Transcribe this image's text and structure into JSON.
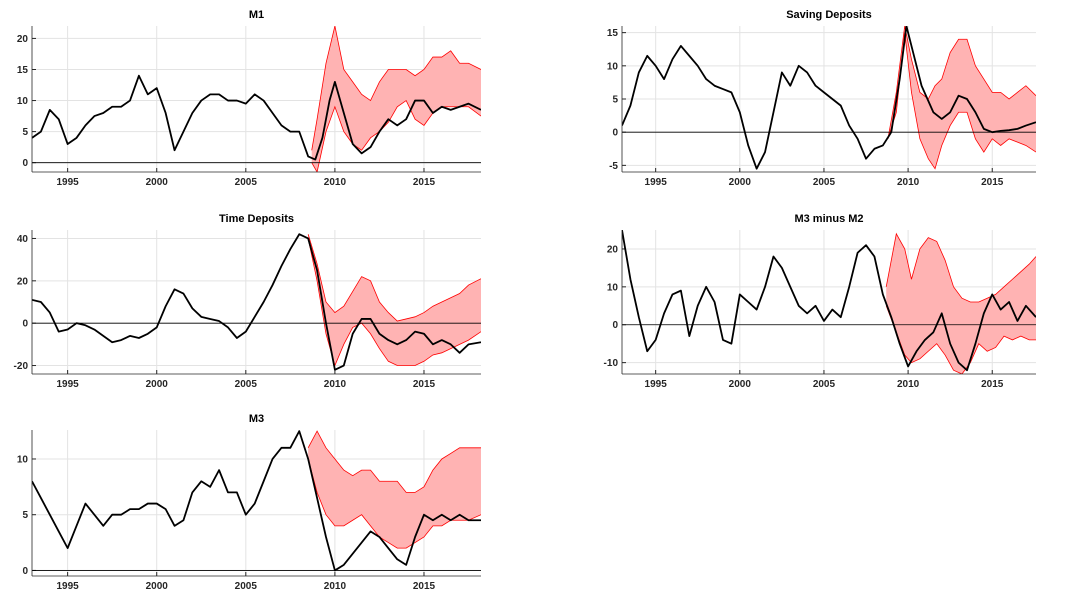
{
  "chart_data": [
    {
      "type": "line",
      "title": "M1",
      "xlim": [
        1993,
        2018.2
      ],
      "xticks": [
        1995,
        2000,
        2005,
        2010,
        2015
      ],
      "ylim": [
        -1.5,
        22
      ],
      "yticks": [
        0,
        5,
        10,
        15,
        20
      ],
      "grid": true,
      "hline": 0,
      "line": {
        "color": "#000000",
        "x": [
          1993,
          1993.5,
          1994,
          1994.5,
          1995,
          1995.5,
          1996,
          1996.5,
          1997,
          1997.5,
          1998,
          1998.5,
          1999,
          1999.5,
          2000,
          2000.5,
          2001,
          2001.5,
          2002,
          2002.5,
          2003,
          2003.5,
          2004,
          2004.5,
          2005,
          2005.5,
          2006,
          2006.5,
          2007,
          2007.5,
          2008,
          2008.5,
          2008.9,
          2009.3,
          2009.7,
          2010,
          2010.5,
          2011,
          2011.5,
          2012,
          2012.5,
          2013,
          2013.5,
          2014,
          2014.5,
          2015,
          2015.5,
          2016,
          2016.5,
          2017,
          2017.5,
          2018.2
        ],
        "values": [
          4,
          5,
          8.5,
          7,
          3,
          4,
          6,
          7.5,
          8,
          9,
          9,
          10,
          14,
          11,
          12,
          8,
          2,
          5,
          8,
          10,
          11,
          11,
          10,
          10,
          9.5,
          11,
          10,
          8,
          6,
          5,
          5,
          1,
          0.5,
          4,
          10,
          13,
          8,
          3,
          1.5,
          2.5,
          5,
          7,
          6,
          7,
          10,
          10,
          8,
          9,
          8.5,
          9,
          9.5,
          8.5
        ]
      },
      "band": {
        "color": "#ff0000",
        "fill": "#ffb3b3",
        "x": [
          2008.7,
          2009,
          2009.5,
          2010,
          2010.5,
          2011,
          2011.5,
          2012,
          2012.5,
          2013,
          2013.5,
          2014,
          2014.5,
          2015,
          2015.5,
          2016,
          2016.5,
          2017,
          2017.5,
          2018.2
        ],
        "lower": [
          0,
          -1.5,
          5,
          9,
          5,
          3,
          2,
          4,
          5,
          6.5,
          9,
          10,
          7,
          6,
          8,
          9,
          9,
          9,
          9,
          7.5
        ],
        "upper": [
          2,
          7,
          16,
          22,
          15,
          13,
          11,
          10,
          13,
          15,
          15,
          15,
          14,
          15,
          17,
          17,
          18,
          16,
          16,
          15
        ]
      }
    },
    {
      "type": "line",
      "title": "Saving Deposits",
      "xlim": [
        1993,
        2017.6
      ],
      "xticks": [
        1995,
        2000,
        2005,
        2010,
        2015
      ],
      "ylim": [
        -6,
        16
      ],
      "yticks": [
        -5,
        0,
        5,
        10,
        15
      ],
      "grid": true,
      "hline": 0,
      "line": {
        "color": "#000000",
        "x": [
          1993,
          1993.5,
          1994,
          1994.5,
          1995,
          1995.5,
          1996,
          1996.5,
          1997,
          1997.5,
          1998,
          1998.5,
          1999,
          1999.5,
          2000,
          2000.5,
          2001,
          2001.5,
          2002,
          2002.5,
          2003,
          2003.5,
          2004,
          2004.5,
          2005,
          2005.5,
          2006,
          2006.5,
          2007,
          2007.5,
          2008,
          2008.5,
          2009,
          2009.5,
          2009.9,
          2010.3,
          2010.8,
          2011.5,
          2012,
          2012.5,
          2013,
          2013.5,
          2014,
          2014.5,
          2015,
          2015.5,
          2016,
          2016.5,
          2017,
          2017.6
        ],
        "values": [
          1,
          4,
          9,
          11.5,
          10,
          8,
          11,
          13,
          11.5,
          10,
          8,
          7,
          6.5,
          6,
          3,
          -2,
          -5.5,
          -3,
          3,
          9,
          7,
          10,
          9,
          7,
          6,
          5,
          4,
          1,
          -1,
          -4,
          -2.5,
          -2,
          0,
          8,
          16,
          12,
          7,
          3,
          2,
          3,
          5.5,
          5,
          3,
          0.5,
          0,
          0.2,
          0.3,
          0.5,
          1,
          1.5
        ]
      },
      "band": {
        "color": "#ff0000",
        "fill": "#ffb3b3",
        "x": [
          2008.8,
          2009.3,
          2009.8,
          2010.2,
          2010.7,
          2011.2,
          2011.6,
          2012,
          2012.5,
          2013,
          2013.5,
          2014,
          2014.5,
          2015,
          2015.5,
          2016,
          2016.5,
          2017,
          2017.6
        ],
        "lower": [
          -1,
          3,
          15,
          6,
          -1,
          -4,
          -5.5,
          -2,
          1,
          3,
          3,
          -1,
          -3,
          -1,
          -2,
          -1,
          -1.5,
          -2,
          -3
        ],
        "upper": [
          -1,
          6,
          16,
          11,
          6,
          5,
          7,
          8,
          12,
          14,
          14,
          10,
          8,
          6,
          6,
          5,
          6,
          7,
          5.5
        ]
      }
    },
    {
      "type": "line",
      "title": "Time Deposits",
      "xlim": [
        1993,
        2018.2
      ],
      "xticks": [
        1995,
        2000,
        2005,
        2010,
        2015
      ],
      "ylim": [
        -24,
        44
      ],
      "yticks": [
        -20,
        0,
        20,
        40
      ],
      "grid": true,
      "hline": 0,
      "line": {
        "color": "#000000",
        "x": [
          1993,
          1993.5,
          1994,
          1994.5,
          1995,
          1995.5,
          1996,
          1996.5,
          1997,
          1997.5,
          1998,
          1998.5,
          1999,
          1999.5,
          2000,
          2000.5,
          2001,
          2001.5,
          2002,
          2002.5,
          2003,
          2003.5,
          2004,
          2004.5,
          2005,
          2005.5,
          2006,
          2006.5,
          2007,
          2007.5,
          2008,
          2008.5,
          2009,
          2009.5,
          2010,
          2010.5,
          2011,
          2011.5,
          2012,
          2012.5,
          2013,
          2013.5,
          2014,
          2014.5,
          2015,
          2015.5,
          2016,
          2016.5,
          2017,
          2017.5,
          2018.2
        ],
        "values": [
          11,
          10,
          5,
          -4,
          -3,
          0,
          -1,
          -3,
          -6,
          -9,
          -8,
          -6,
          -7,
          -5,
          -2,
          8,
          16,
          14,
          7,
          3,
          2,
          1,
          -2,
          -7,
          -4,
          3,
          10,
          18,
          27,
          35,
          42,
          40,
          25,
          0,
          -22,
          -20,
          -5,
          2,
          2,
          -5,
          -8,
          -10,
          -8,
          -4,
          -5,
          -10,
          -8,
          -10,
          -14,
          -10,
          -9
        ]
      },
      "band": {
        "color": "#ff0000",
        "fill": "#ffb3b3",
        "x": [
          2008.5,
          2009,
          2009.5,
          2010,
          2010.5,
          2011,
          2011.5,
          2012,
          2012.5,
          2013,
          2013.5,
          2014,
          2014.5,
          2015,
          2015.5,
          2016,
          2016.5,
          2017,
          2017.5,
          2018.2
        ],
        "lower": [
          40,
          20,
          -5,
          -20,
          -10,
          -2,
          0,
          -5,
          -12,
          -18,
          -20,
          -20,
          -20,
          -18,
          -15,
          -14,
          -12,
          -10,
          -8,
          -4
        ],
        "upper": [
          42,
          28,
          10,
          5,
          8,
          15,
          22,
          20,
          10,
          5,
          1,
          2,
          3,
          5,
          8,
          10,
          12,
          14,
          18,
          21
        ]
      }
    },
    {
      "type": "line",
      "title": "M3 minus M2",
      "xlim": [
        1993,
        2017.6
      ],
      "xticks": [
        1995,
        2000,
        2005,
        2010,
        2015
      ],
      "ylim": [
        -13,
        25
      ],
      "yticks": [
        -10,
        0,
        10,
        20
      ],
      "grid": true,
      "hline": 0,
      "line": {
        "color": "#000000",
        "x": [
          1993,
          1993.5,
          1994,
          1994.5,
          1995,
          1995.5,
          1996,
          1996.5,
          1997,
          1997.5,
          1998,
          1998.5,
          1999,
          1999.5,
          2000,
          2000.5,
          2001,
          2001.5,
          2002,
          2002.5,
          2003,
          2003.5,
          2004,
          2004.5,
          2005,
          2005.5,
          2006,
          2006.5,
          2007,
          2007.5,
          2008,
          2008.5,
          2009,
          2009.5,
          2010,
          2010.5,
          2011,
          2011.5,
          2012,
          2012.5,
          2013,
          2013.5,
          2014,
          2014.5,
          2015,
          2015.5,
          2016,
          2016.5,
          2017,
          2017.6
        ],
        "values": [
          25,
          12,
          2,
          -7,
          -4,
          3,
          8,
          9,
          -3,
          5,
          10,
          6,
          -4,
          -5,
          8,
          6,
          4,
          10,
          18,
          15,
          10,
          5,
          3,
          5,
          1,
          4,
          2,
          10,
          19,
          21,
          18,
          8,
          2,
          -5,
          -11,
          -7,
          -4,
          -2,
          3,
          -5,
          -10,
          -12,
          -5,
          3,
          8,
          4,
          6,
          1,
          5,
          2
        ]
      },
      "band": {
        "color": "#ff0000",
        "fill": "#ffb3b3",
        "x": [
          2008.7,
          2009.3,
          2009.8,
          2010.2,
          2010.7,
          2011.2,
          2011.7,
          2012.2,
          2012.7,
          2013.2,
          2013.7,
          2014.2,
          2014.7,
          2015.2,
          2015.7,
          2016.2,
          2016.7,
          2017.2,
          2017.6
        ],
        "lower": [
          5,
          -2,
          -8,
          -10,
          -9,
          -7,
          -5,
          -8,
          -12,
          -13,
          -10,
          -5,
          -7,
          -6,
          -3,
          -4,
          -3,
          -4,
          -4
        ],
        "upper": [
          10,
          24,
          20,
          12,
          20,
          23,
          22,
          17,
          10,
          7,
          6,
          6,
          7,
          8,
          10,
          12,
          14,
          16,
          18
        ]
      }
    },
    {
      "type": "line",
      "title": "M3",
      "xlim": [
        1993,
        2018.2
      ],
      "xticks": [
        1995,
        2000,
        2005,
        2010,
        2015
      ],
      "ylim": [
        -0.5,
        12.6
      ],
      "yticks": [
        0,
        5,
        10
      ],
      "grid": true,
      "hline": 0,
      "line": {
        "color": "#000000",
        "x": [
          1993,
          1993.5,
          1994,
          1994.5,
          1995,
          1995.5,
          1996,
          1996.5,
          1997,
          1997.5,
          1998,
          1998.5,
          1999,
          1999.5,
          2000,
          2000.5,
          2001,
          2001.5,
          2002,
          2002.5,
          2003,
          2003.5,
          2004,
          2004.5,
          2005,
          2005.5,
          2006,
          2006.5,
          2007,
          2007.5,
          2008,
          2008.5,
          2009,
          2009.5,
          2010,
          2010.5,
          2011,
          2011.5,
          2012,
          2012.5,
          2013,
          2013.5,
          2014,
          2014.5,
          2015,
          2015.5,
          2016,
          2016.5,
          2017,
          2017.5,
          2018.2
        ],
        "values": [
          8,
          6.5,
          5,
          3.5,
          2,
          4,
          6,
          5,
          4,
          5,
          5,
          5.5,
          5.5,
          6,
          6,
          5.5,
          4,
          4.5,
          7,
          8,
          7.5,
          9,
          7,
          7,
          5,
          6,
          8,
          10,
          11,
          11,
          12.5,
          10,
          6.5,
          3,
          0,
          0.5,
          1.5,
          2.5,
          3.5,
          3,
          2,
          1,
          0.5,
          3,
          5,
          4.5,
          5,
          4.5,
          5,
          4.5,
          4.5
        ]
      },
      "band": {
        "color": "#ff0000",
        "fill": "#ffb3b3",
        "x": [
          2008.5,
          2009,
          2009.5,
          2010,
          2010.5,
          2011,
          2011.5,
          2012,
          2012.5,
          2013,
          2013.5,
          2014,
          2014.5,
          2015,
          2015.5,
          2016,
          2016.5,
          2017,
          2017.5,
          2018.2
        ],
        "lower": [
          10,
          7,
          5,
          4,
          4,
          4.5,
          5,
          4,
          3,
          2.5,
          2,
          2,
          2.5,
          3,
          4,
          4,
          4.5,
          4.5,
          4.5,
          5
        ],
        "upper": [
          11,
          12.5,
          11,
          10,
          9,
          8.5,
          9,
          9,
          8,
          8,
          8,
          7,
          7,
          7.5,
          9,
          10,
          10.5,
          11,
          11,
          11
        ]
      }
    }
  ]
}
